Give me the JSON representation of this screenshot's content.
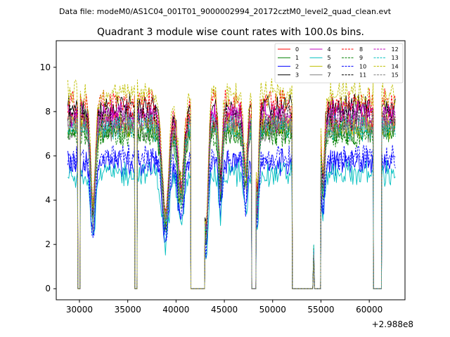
{
  "figure": {
    "suptitle": "Data file: modeM0/AS1C04_001T01_9000002994_20172cztM0_level2_quad_clean.evt",
    "title": "Quadrant 3 module wise count rates with 100.0s bins.",
    "offset_label": "+2.988e8"
  },
  "chart_data": {
    "type": "line",
    "title": "Quadrant 3 module wise count rates with 100.0s bins.",
    "xlabel": "",
    "ylabel": "",
    "x_offset": 298800000,
    "xlim": [
      27600,
      63700
    ],
    "ylim": [
      -0.5,
      11.2
    ],
    "xticks": [
      30000,
      35000,
      40000,
      45000,
      50000,
      55000,
      60000
    ],
    "xtick_labels": [
      "30000",
      "35000",
      "40000",
      "45000",
      "50000",
      "55000",
      "60000"
    ],
    "yticks": [
      0,
      2,
      4,
      6,
      8,
      10
    ],
    "ytick_labels": [
      "0",
      "2",
      "4",
      "6",
      "8",
      "10"
    ],
    "grid": false,
    "legend_position": "top-right",
    "legend_columns": 4,
    "segments": [
      {
        "start": 28800,
        "end": 29800
      },
      {
        "start": 30100,
        "end": 35700
      },
      {
        "start": 36000,
        "end": 41500
      },
      {
        "start": 43000,
        "end": 47800
      },
      {
        "start": 48300,
        "end": 52000
      },
      {
        "start": 55000,
        "end": 60400
      },
      {
        "start": 61300,
        "end": 62700
      }
    ],
    "gaps": [
      {
        "start": 29800,
        "end": 30100
      },
      {
        "start": 35700,
        "end": 36000
      },
      {
        "start": 41500,
        "end": 43000
      },
      {
        "start": 47800,
        "end": 48300
      },
      {
        "start": 52000,
        "end": 55000
      },
      {
        "start": 60400,
        "end": 61300
      }
    ],
    "series": [
      {
        "name": "0",
        "color": "#ff0000",
        "dash": "solid",
        "mean_rate": 7.6
      },
      {
        "name": "1",
        "color": "#008000",
        "dash": "solid",
        "mean_rate": 7.1
      },
      {
        "name": "2",
        "color": "#0000ff",
        "dash": "solid",
        "mean_rate": 5.7
      },
      {
        "name": "3",
        "color": "#000000",
        "dash": "solid",
        "mean_rate": 8.2
      },
      {
        "name": "4",
        "color": "#bf00bf",
        "dash": "solid",
        "mean_rate": 7.9
      },
      {
        "name": "5",
        "color": "#00bfbf",
        "dash": "solid",
        "mean_rate": 5.2
      },
      {
        "name": "6",
        "color": "#bfbf00",
        "dash": "solid",
        "mean_rate": 7.4
      },
      {
        "name": "7",
        "color": "#808080",
        "dash": "solid",
        "mean_rate": 7.2
      },
      {
        "name": "8",
        "color": "#ff0000",
        "dash": "dashed",
        "mean_rate": 8.4
      },
      {
        "name": "9",
        "color": "#008000",
        "dash": "dashed",
        "mean_rate": 7.0
      },
      {
        "name": "10",
        "color": "#0000ff",
        "dash": "dashed",
        "mean_rate": 5.9
      },
      {
        "name": "11",
        "color": "#000000",
        "dash": "dashed",
        "mean_rate": 7.8
      },
      {
        "name": "12",
        "color": "#bf00bf",
        "dash": "dashed",
        "mean_rate": 7.7
      },
      {
        "name": "13",
        "color": "#00bfbf",
        "dash": "dashed",
        "mean_rate": 7.3
      },
      {
        "name": "14",
        "color": "#bfbf00",
        "dash": "dashed",
        "mean_rate": 8.8
      },
      {
        "name": "15",
        "color": "#808080",
        "dash": "dashed",
        "mean_rate": 7.5
      }
    ]
  }
}
